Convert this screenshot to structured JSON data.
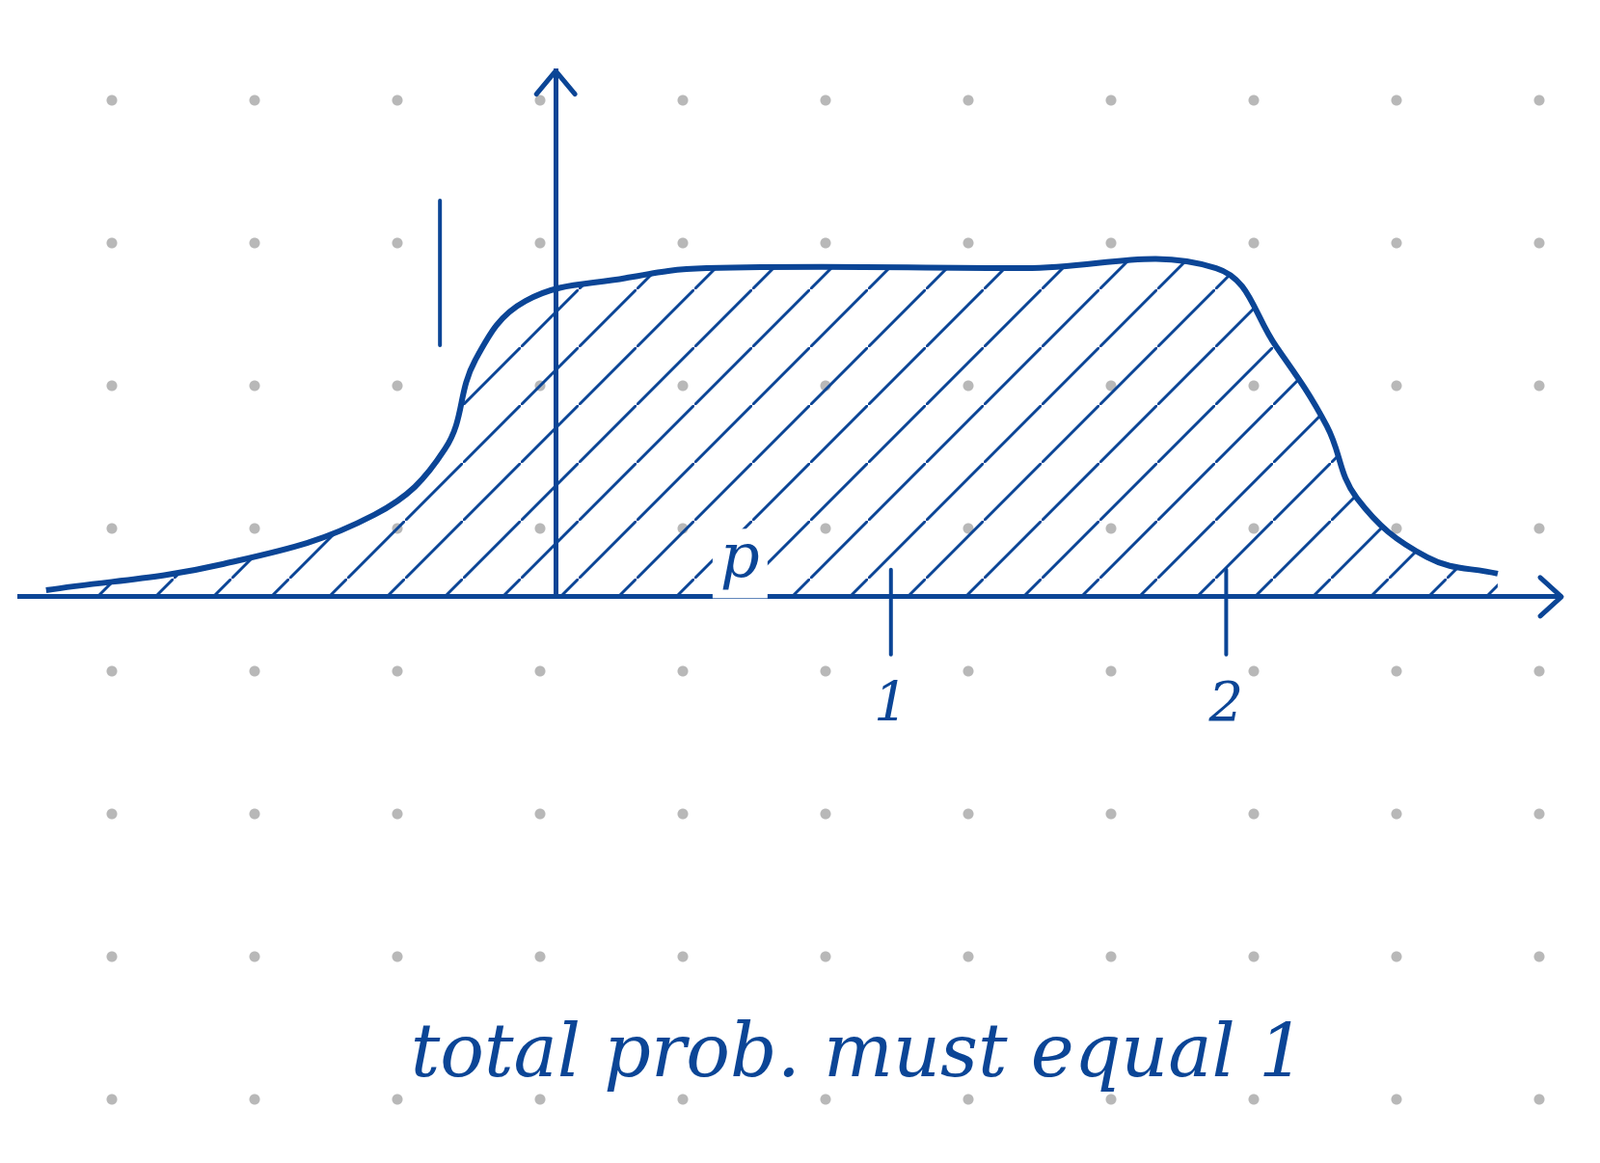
{
  "chart_data": {
    "type": "line",
    "x": [
      -1.52,
      -0.99,
      -0.54,
      -0.33,
      -0.24,
      -0.09,
      0.21,
      0.45,
      1.4,
      1.97,
      2.15,
      2.3,
      2.39,
      2.6,
      2.81
    ],
    "values": [
      0.02,
      0.1,
      0.25,
      0.45,
      0.72,
      0.9,
      0.97,
      1.0,
      1.0,
      1.0,
      0.76,
      0.52,
      0.3,
      0.12,
      0.07
    ],
    "color": "#0b4596",
    "xlim": [
      -1.6,
      3.0
    ],
    "ylim": [
      0,
      1.6
    ],
    "xticks": [
      1,
      2
    ],
    "yticks": [
      1
    ],
    "grid": false,
    "annotations": [
      "p",
      "total prob. must equal 1"
    ]
  }
}
